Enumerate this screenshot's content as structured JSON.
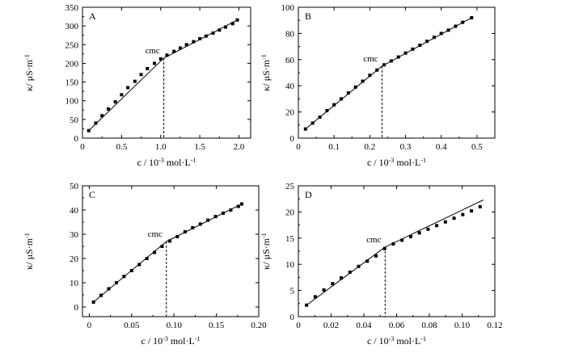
{
  "chart_data": [
    {
      "panel": "A",
      "type": "scatter",
      "xlabel": "c / 10⁻³ mol·L⁻¹",
      "ylabel": "κ/ μS·m⁻¹",
      "xlim": [
        0,
        2.15
      ],
      "ylim": [
        0,
        350
      ],
      "xticks": [
        0,
        0.5,
        1.0,
        1.5,
        2.0
      ],
      "xtick_labels": [
        "0",
        "0.5",
        "1.0",
        "1.5",
        "2.0"
      ],
      "yticks": [
        0,
        50,
        100,
        150,
        200,
        250,
        300,
        350
      ],
      "ytick_labels": [
        "0",
        "50",
        "100",
        "150",
        "200",
        "250",
        "300",
        "350"
      ],
      "cmc": {
        "label": "cmc",
        "x": 1.04,
        "y": 214
      },
      "points": [
        [
          0.08,
          20
        ],
        [
          0.17,
          40
        ],
        [
          0.25,
          60
        ],
        [
          0.33,
          78
        ],
        [
          0.42,
          97
        ],
        [
          0.5,
          116
        ],
        [
          0.58,
          135
        ],
        [
          0.67,
          152
        ],
        [
          0.75,
          170
        ],
        [
          0.83,
          186
        ],
        [
          0.92,
          200
        ],
        [
          1.0,
          212
        ],
        [
          1.08,
          222
        ],
        [
          1.17,
          232
        ],
        [
          1.25,
          241
        ],
        [
          1.33,
          250
        ],
        [
          1.42,
          258
        ],
        [
          1.5,
          266
        ],
        [
          1.58,
          273
        ],
        [
          1.67,
          281
        ],
        [
          1.75,
          289
        ],
        [
          1.83,
          297
        ],
        [
          1.92,
          306
        ],
        [
          1.98,
          316
        ]
      ],
      "fit_lines": [
        [
          [
            0.08,
            20
          ],
          [
            1.04,
            214
          ]
        ],
        [
          [
            1.04,
            214
          ],
          [
            1.98,
            316
          ]
        ]
      ]
    },
    {
      "panel": "B",
      "type": "scatter",
      "xlabel": "c / 10⁻³ mol·L⁻¹",
      "ylabel": "κ/ μS·m⁻¹",
      "xlim": [
        0,
        0.55
      ],
      "ylim": [
        0,
        100
      ],
      "xticks": [
        0,
        0.1,
        0.2,
        0.3,
        0.4,
        0.5
      ],
      "xtick_labels": [
        "0",
        "0.1",
        "0.2",
        "0.3",
        "0.4",
        "0.5"
      ],
      "yticks": [
        0,
        20,
        40,
        60,
        80,
        100
      ],
      "ytick_labels": [
        "0",
        "20",
        "40",
        "60",
        "80",
        "100"
      ],
      "cmc": {
        "label": "cmc",
        "x": 0.234,
        "y": 55
      },
      "points": [
        [
          0.02,
          7
        ],
        [
          0.04,
          11.5
        ],
        [
          0.06,
          16
        ],
        [
          0.08,
          21
        ],
        [
          0.1,
          25.5
        ],
        [
          0.12,
          30
        ],
        [
          0.14,
          34.5
        ],
        [
          0.16,
          39
        ],
        [
          0.18,
          43.5
        ],
        [
          0.2,
          48
        ],
        [
          0.22,
          52
        ],
        [
          0.24,
          56
        ],
        [
          0.26,
          59
        ],
        [
          0.28,
          62
        ],
        [
          0.3,
          65
        ],
        [
          0.32,
          68
        ],
        [
          0.34,
          71
        ],
        [
          0.36,
          74
        ],
        [
          0.38,
          77
        ],
        [
          0.4,
          80
        ],
        [
          0.42,
          82.5
        ],
        [
          0.44,
          85.5
        ],
        [
          0.46,
          88.5
        ],
        [
          0.485,
          92
        ]
      ],
      "fit_lines": [
        [
          [
            0.02,
            7
          ],
          [
            0.234,
            55
          ]
        ],
        [
          [
            0.234,
            55
          ],
          [
            0.485,
            92
          ]
        ]
      ]
    },
    {
      "panel": "C",
      "type": "scatter",
      "xlabel": "c / 10⁻³ mol·L⁻¹",
      "ylabel": "κ/ μS·m⁻¹",
      "xlim": [
        -0.008,
        0.2
      ],
      "ylim": [
        -4,
        50
      ],
      "xticks": [
        0,
        0.05,
        0.1,
        0.15,
        0.2
      ],
      "xtick_labels": [
        "0",
        "0.05",
        "0.10",
        "0.15",
        "0.20"
      ],
      "yticks": [
        0,
        10,
        20,
        30,
        40,
        50
      ],
      "ytick_labels": [
        "0",
        "10",
        "20",
        "30",
        "40",
        "50"
      ],
      "cmc": {
        "label": "cmc",
        "x": 0.091,
        "y": 27
      },
      "points": [
        [
          0.005,
          2
        ],
        [
          0.014,
          4.8
        ],
        [
          0.023,
          7.5
        ],
        [
          0.032,
          10
        ],
        [
          0.041,
          12.6
        ],
        [
          0.05,
          15
        ],
        [
          0.059,
          17.5
        ],
        [
          0.068,
          20
        ],
        [
          0.077,
          22.5
        ],
        [
          0.086,
          25
        ],
        [
          0.095,
          27.2
        ],
        [
          0.104,
          29
        ],
        [
          0.113,
          31
        ],
        [
          0.122,
          32.7
        ],
        [
          0.131,
          34.2
        ],
        [
          0.14,
          35.8
        ],
        [
          0.149,
          37.3
        ],
        [
          0.158,
          38.7
        ],
        [
          0.167,
          40
        ],
        [
          0.176,
          41.5
        ],
        [
          0.18,
          42.5
        ]
      ],
      "fit_lines": [
        [
          [
            0.005,
            2
          ],
          [
            0.091,
            27
          ]
        ],
        [
          [
            0.091,
            27
          ],
          [
            0.18,
            42.5
          ]
        ]
      ]
    },
    {
      "panel": "D",
      "type": "scatter",
      "xlabel": "c / 10⁻³ mol·L⁻¹",
      "ylabel": "κ/ μS·m⁻¹",
      "xlim": [
        0,
        0.12
      ],
      "ylim": [
        0,
        25
      ],
      "xticks": [
        0,
        0.02,
        0.04,
        0.06,
        0.08,
        0.1,
        0.12
      ],
      "xtick_labels": [
        "0",
        "0.02",
        "0.04",
        "0.06",
        "0.08",
        "0.10",
        "0.12"
      ],
      "yticks": [
        0,
        5,
        10,
        15,
        20,
        25
      ],
      "ytick_labels": [
        "0",
        "5",
        "10",
        "15",
        "20",
        "25"
      ],
      "cmc": {
        "label": "cmc",
        "x": 0.053,
        "y": 13.3
      },
      "points": [
        [
          0.005,
          2.2
        ],
        [
          0.0103,
          3.8
        ],
        [
          0.0156,
          5.1
        ],
        [
          0.0209,
          6.3
        ],
        [
          0.0262,
          7.4
        ],
        [
          0.0315,
          8.5
        ],
        [
          0.0368,
          9.6
        ],
        [
          0.0421,
          10.6
        ],
        [
          0.0474,
          11.6
        ],
        [
          0.0527,
          13.0
        ],
        [
          0.058,
          13.9
        ],
        [
          0.0633,
          14.6
        ],
        [
          0.0686,
          15.3
        ],
        [
          0.0739,
          16.0
        ],
        [
          0.0792,
          16.7
        ],
        [
          0.0845,
          17.4
        ],
        [
          0.0898,
          18.1
        ],
        [
          0.0951,
          18.8
        ],
        [
          0.1004,
          19.5
        ],
        [
          0.1057,
          20.2
        ],
        [
          0.111,
          21.0
        ]
      ],
      "fit_lines": [
        [
          [
            0.005,
            2.2
          ],
          [
            0.053,
            13.3
          ]
        ],
        [
          [
            0.053,
            13.3
          ],
          [
            0.113,
            22.3
          ]
        ]
      ]
    }
  ]
}
